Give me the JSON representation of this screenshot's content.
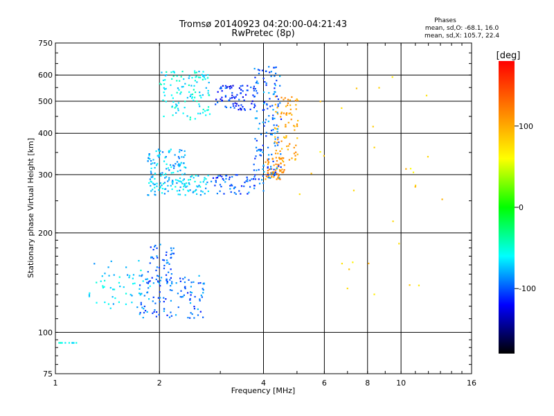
{
  "chart_data": {
    "type": "scatter",
    "title": "Tromsø 20140923 04:20:00-04:21:43",
    "subtitle": "RwPretec (8p)",
    "xlabel": "Frequency [MHz]",
    "ylabel": "Stationary phase Virtual Height [km]",
    "x_scale": "log",
    "y_scale": "log",
    "xlim": [
      1,
      16
    ],
    "ylim": [
      75,
      750
    ],
    "x_ticks": [
      1,
      2,
      4,
      6,
      8,
      10,
      16
    ],
    "x_tick_labels": [
      "1",
      "2",
      "4",
      "6",
      "8",
      "10",
      "16"
    ],
    "y_ticks": [
      75,
      100,
      200,
      300,
      400,
      500,
      600,
      750
    ],
    "y_tick_labels": [
      "75",
      "100",
      "200",
      "300",
      "400",
      "500",
      "600",
      "750"
    ],
    "grid": true,
    "legend_title": "Phases",
    "legend_lines": [
      "mean, sd,O: -68.1, 16.0",
      "mean, sd,X: 105.7, 22.4"
    ],
    "legend_position": "top-right",
    "colorbar": {
      "label": "[deg]",
      "range": [
        -180,
        180
      ],
      "ticks": [
        100,
        0,
        -100
      ],
      "tick_labels": [
        "100",
        "0",
        "-100"
      ],
      "colors": [
        "#ff0000",
        "#ff8000",
        "#ffff00",
        "#00ff00",
        "#00ffff",
        "#0000ff",
        "#000000"
      ]
    },
    "traces": [
      {
        "x": [
          1.0,
          1.15
        ],
        "y": [
          93,
          93
        ],
        "phase": -60,
        "n": 12
      },
      {
        "x": [
          1.25,
          1.9
        ],
        "y": [
          118,
          165
        ],
        "phase": -70,
        "n": 60
      },
      {
        "x": [
          1.75,
          2.7
        ],
        "y": [
          110,
          150
        ],
        "phase": -95,
        "n": 110
      },
      {
        "x": [
          1.85,
          2.2
        ],
        "y": [
          140,
          185
        ],
        "phase": -100,
        "n": 50
      },
      {
        "x": [
          1.85,
          2.8
        ],
        "y": [
          260,
          300
        ],
        "phase": -70,
        "n": 110
      },
      {
        "x": [
          1.85,
          2.4
        ],
        "y": [
          300,
          360
        ],
        "phase": -75,
        "n": 80
      },
      {
        "x": [
          2.8,
          4.0
        ],
        "y": [
          262,
          300
        ],
        "phase": -100,
        "n": 60
      },
      {
        "x": [
          4.05,
          4.6
        ],
        "y": [
          290,
          340
        ],
        "phase": 115,
        "n": 60
      },
      {
        "x": [
          4.3,
          5.05
        ],
        "y": [
          330,
          520
        ],
        "phase": 105,
        "n": 80
      },
      {
        "x": [
          3.75,
          4.5
        ],
        "y": [
          290,
          640
        ],
        "phase": -95,
        "n": 140
      },
      {
        "x": [
          2.0,
          2.8
        ],
        "y": [
          440,
          620
        ],
        "phase": -60,
        "n": 120
      },
      {
        "x": [
          2.9,
          3.8
        ],
        "y": [
          470,
          560
        ],
        "phase": -110,
        "n": 80
      },
      {
        "x": [
          5.0,
          13.5
        ],
        "y": [
          120,
          600
        ],
        "phase": 80,
        "n": 30
      }
    ]
  }
}
